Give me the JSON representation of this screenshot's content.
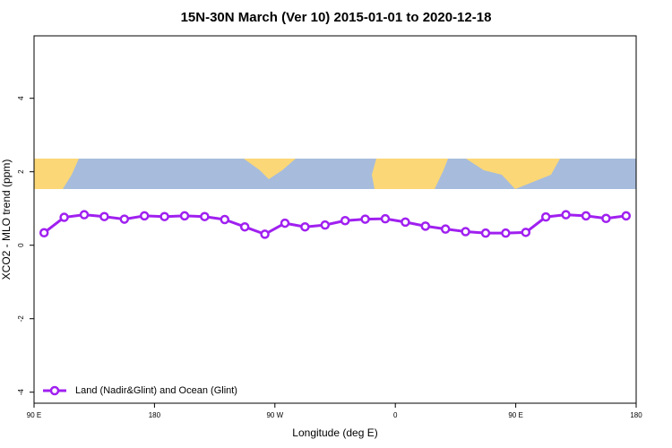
{
  "chart_data": {
    "type": "line",
    "title": "15N-30N March (Ver 10)   2015-01-01 to 2020-12-18",
    "x_label": "Longitude (deg E)",
    "y_label": "XCO2 - MLO trend (ppm)",
    "x": [
      97.5,
      112.5,
      127.5,
      142.5,
      157.5,
      172.5,
      187.5,
      202.5,
      217.5,
      232.5,
      247.5,
      262.5,
      277.5,
      292.5,
      307.5,
      322.5,
      337.5,
      352.5,
      367.5,
      382.5,
      397.5,
      412.5,
      427.5,
      442.5,
      457.5,
      472.5,
      487.5,
      502.5,
      517.5,
      532.5
    ],
    "series": [
      {
        "name": "Land (Nadir&Glint) and Ocean (Glint)",
        "color": "#a020f0",
        "values": [
          0.34,
          0.76,
          0.83,
          0.78,
          0.71,
          0.8,
          0.78,
          0.8,
          0.78,
          0.7,
          0.5,
          0.3,
          0.6,
          0.5,
          0.55,
          0.67,
          0.71,
          0.72,
          0.63,
          0.52,
          0.44,
          0.37,
          0.33,
          0.33,
          0.35,
          0.77,
          0.83,
          0.8,
          0.73,
          0.8
        ]
      }
    ],
    "xlim": [
      90,
      540
    ],
    "xticks": [
      {
        "value": 90,
        "label": "90 E"
      },
      180,
      {
        "value": 270,
        "label": "90 W"
      },
      {
        "value": 360,
        "label": "0"
      },
      {
        "value": 450,
        "label": "90 E"
      },
      {
        "value": 540,
        "label": "180"
      }
    ],
    "ylim": [
      -4.3,
      5.7
    ],
    "yticks": [
      -4,
      -2,
      0,
      2,
      4
    ],
    "legend": "bottom-left"
  }
}
